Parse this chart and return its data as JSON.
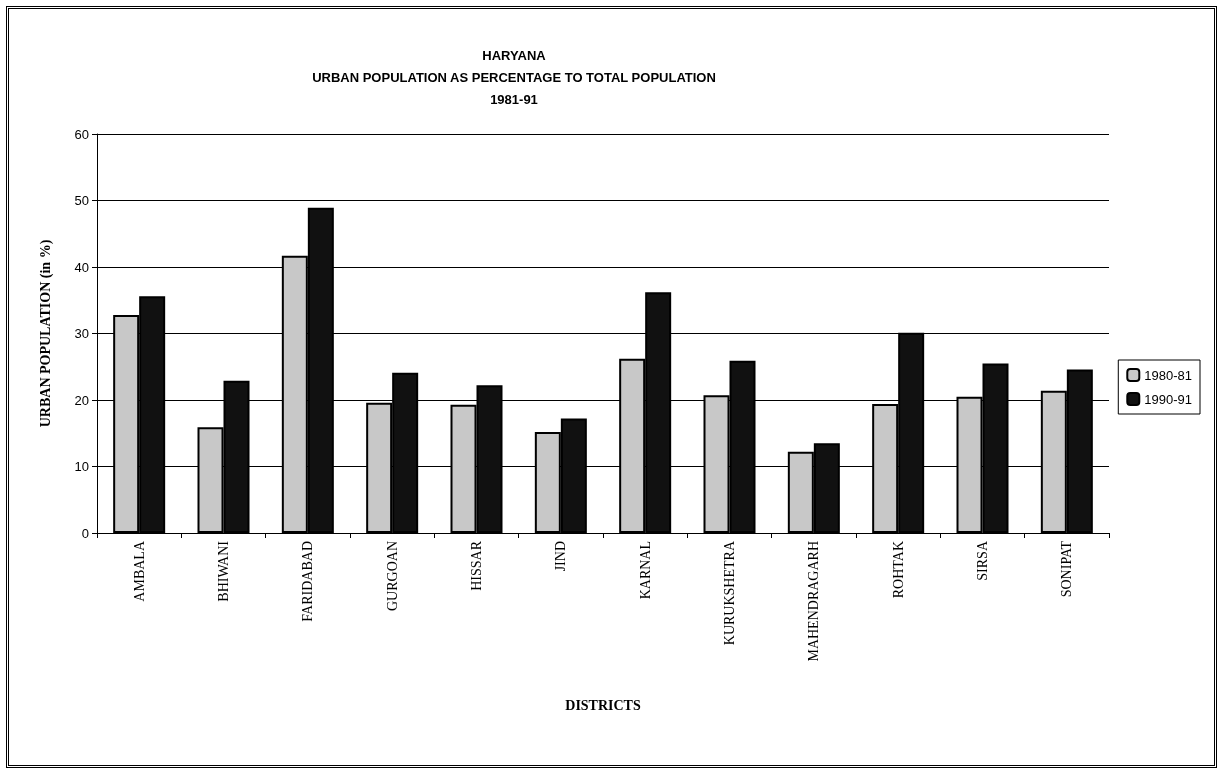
{
  "chart_data": {
    "type": "bar",
    "title": "HARYANA\nURBAN POPULATION AS PERCENTAGE TO TOTAL POPULATION\n1981-91",
    "xlabel": "DISTRICTS",
    "ylabel": "URBAN POPULATION (in %)",
    "categories": [
      "AMBALA",
      "BHIWANI",
      "FARIDABAD",
      "GURGOAN",
      "HISSAR",
      "JIND",
      "KARNAL",
      "KURUKSHETRA",
      "MAHENDRAGARH",
      "ROHTAK",
      "SIRSA",
      "SONIPAT"
    ],
    "series": [
      {
        "name": "1980-81",
        "color": "#c8c8c8",
        "values": [
          32.8,
          15.9,
          41.7,
          19.6,
          19.3,
          15.2,
          26.2,
          20.7,
          12.2,
          19.4,
          20.5,
          21.4
        ]
      },
      {
        "name": "1990-91",
        "color": "#111111",
        "values": [
          35.6,
          22.9,
          48.9,
          24.1,
          22.2,
          17.2,
          36.2,
          25.9,
          13.5,
          30.1,
          25.5,
          24.6
        ]
      }
    ],
    "ylim": [
      0,
      60
    ],
    "yticks": [
      0,
      10,
      20,
      30,
      40,
      50,
      60
    ],
    "grid": "y",
    "legend": "right"
  }
}
